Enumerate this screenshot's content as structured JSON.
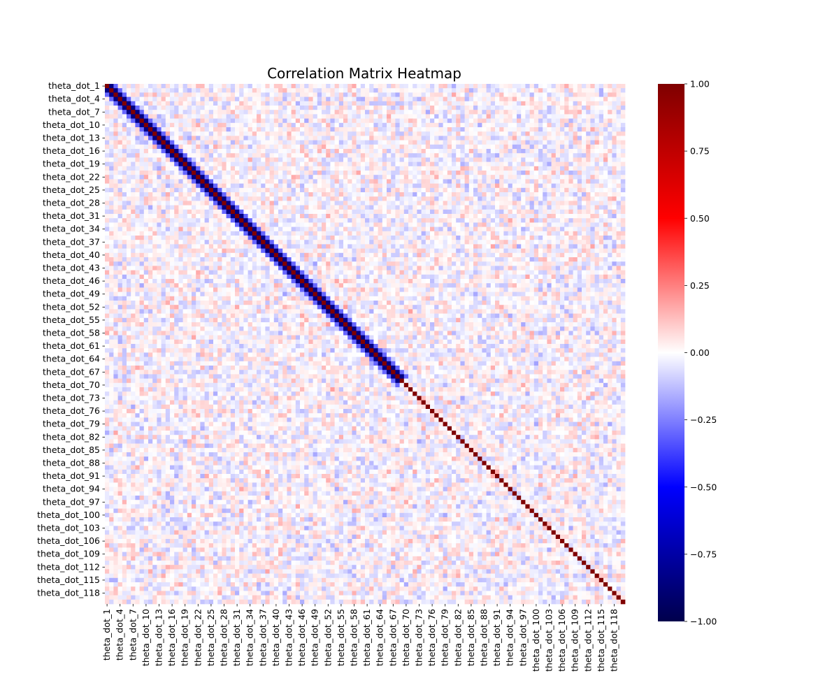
{
  "chart_data": {
    "type": "heatmap",
    "title": "Correlation Matrix Heatmap",
    "xlabel": "",
    "ylabel": "",
    "variable_prefix": "theta_dot_",
    "variable_count": 120,
    "labeled_every": 3,
    "tick_labels": [
      "theta_dot_1",
      "theta_dot_4",
      "theta_dot_7",
      "theta_dot_10",
      "theta_dot_13",
      "theta_dot_16",
      "theta_dot_19",
      "theta_dot_22",
      "theta_dot_25",
      "theta_dot_28",
      "theta_dot_31",
      "theta_dot_34",
      "theta_dot_37",
      "theta_dot_40",
      "theta_dot_43",
      "theta_dot_46",
      "theta_dot_49",
      "theta_dot_52",
      "theta_dot_55",
      "theta_dot_58",
      "theta_dot_61",
      "theta_dot_64",
      "theta_dot_67",
      "theta_dot_70",
      "theta_dot_73",
      "theta_dot_76",
      "theta_dot_79",
      "theta_dot_82",
      "theta_dot_85",
      "theta_dot_88",
      "theta_dot_91",
      "theta_dot_94",
      "theta_dot_97",
      "theta_dot_100",
      "theta_dot_103",
      "theta_dot_106",
      "theta_dot_109",
      "theta_dot_112",
      "theta_dot_115",
      "theta_dot_118"
    ],
    "diagonal_value": 1.0,
    "near_diagonal": {
      "band_upto_index": 68,
      "lag_1_value": -0.85,
      "lag_2_value": -0.3
    },
    "off_diagonal_range": [
      -0.2,
      0.2
    ],
    "colormap": "seismic",
    "colormap_stops": [
      "#00004c",
      "#0000ff",
      "#ffffff",
      "#ff0000",
      "#7f0000"
    ],
    "vmin": -1.0,
    "vmax": 1.0,
    "colorbar_ticks": [
      "-1.00",
      "-0.75",
      "-0.50",
      "-0.25",
      "0.00",
      "0.25",
      "0.50",
      "0.75",
      "1.00"
    ],
    "colorbar_tick_values": [
      -1.0,
      -0.75,
      -0.5,
      -0.25,
      0.0,
      0.25,
      0.5,
      0.75,
      1.0
    ],
    "grid": false,
    "legend": "colorbar-right"
  }
}
